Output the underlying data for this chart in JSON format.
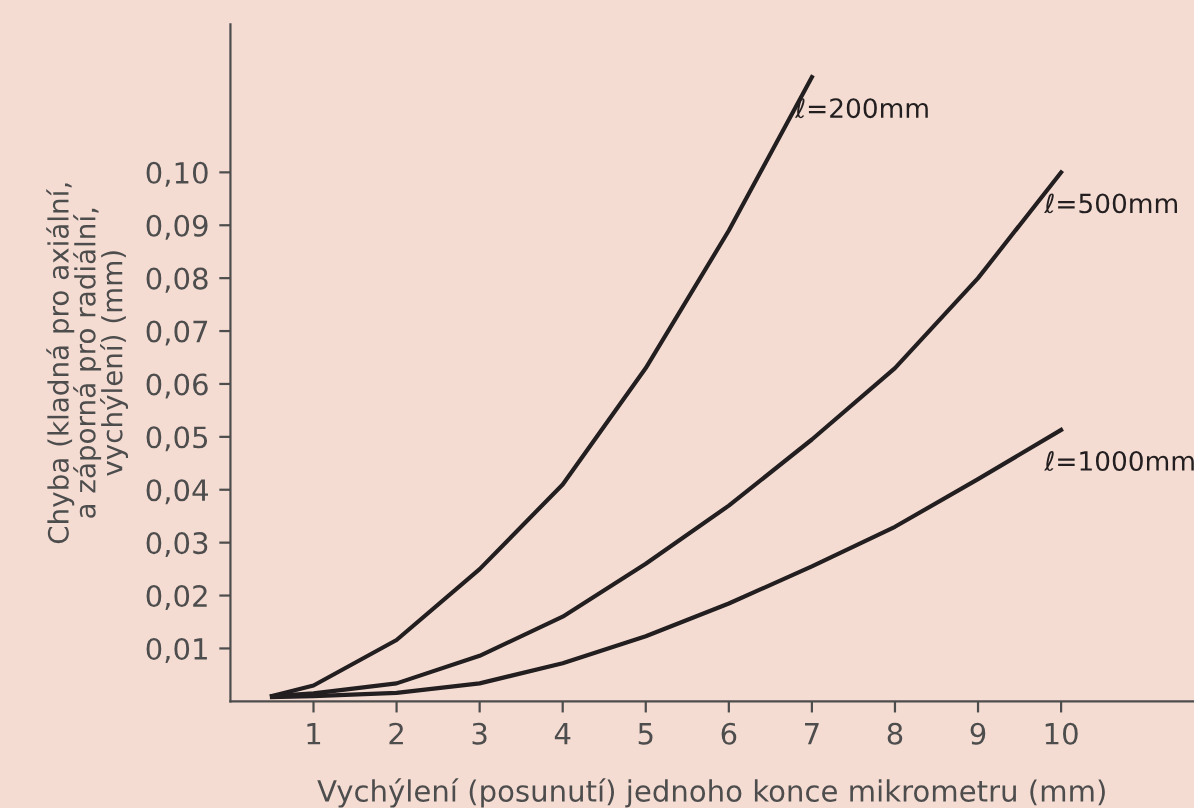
{
  "chart_data": {
    "type": "line",
    "xlabel": "Vychýlení (posunutí) jednoho konce mikrometru (mm)",
    "ylabel": "Chyba (kladná pro axiální,\na záporná pro radiální,\nvychýlení) (mm)",
    "series": [
      {
        "name": "ℓ=200mm",
        "color": "#231f20",
        "x": [
          0.5,
          1,
          2,
          3,
          4,
          5,
          6,
          7
        ],
        "values": [
          0.001,
          0.003,
          0.0116,
          0.025,
          0.041,
          0.063,
          0.089,
          0.118
        ]
      },
      {
        "name": "ℓ=500mm",
        "color": "#231f20",
        "x": [
          0.5,
          1,
          2,
          3,
          4,
          5,
          6,
          7,
          8,
          9,
          10
        ],
        "values": [
          0.001,
          0.0015,
          0.0034,
          0.0086,
          0.016,
          0.026,
          0.037,
          0.0495,
          0.063,
          0.08,
          0.1
        ]
      },
      {
        "name": "ℓ=1000mm",
        "color": "#231f20",
        "x": [
          0.5,
          1,
          2,
          3,
          4,
          5,
          6,
          7,
          8,
          9,
          10
        ],
        "values": [
          0.0008,
          0.001,
          0.0016,
          0.0034,
          0.0072,
          0.0123,
          0.0185,
          0.0255,
          0.033,
          0.042,
          0.0513
        ]
      }
    ],
    "xlim": [
      0,
      11.6
    ],
    "ylim": [
      0,
      0.128
    ],
    "xticks": [
      1,
      2,
      3,
      4,
      5,
      6,
      7,
      8,
      9,
      10
    ],
    "yticks": [
      {
        "value": 0.01,
        "label": "0,01"
      },
      {
        "value": 0.02,
        "label": "0,02"
      },
      {
        "value": 0.03,
        "label": "0,03"
      },
      {
        "value": 0.04,
        "label": "0,04"
      },
      {
        "value": 0.05,
        "label": "0,05"
      },
      {
        "value": 0.06,
        "label": "0,06"
      },
      {
        "value": 0.07,
        "label": "0,07"
      },
      {
        "value": 0.08,
        "label": "0,08"
      },
      {
        "value": 0.09,
        "label": "0,09"
      },
      {
        "value": 0.1,
        "label": "0,10"
      }
    ],
    "grid": false,
    "legend": false,
    "marker": "none",
    "line_style": "solid"
  }
}
